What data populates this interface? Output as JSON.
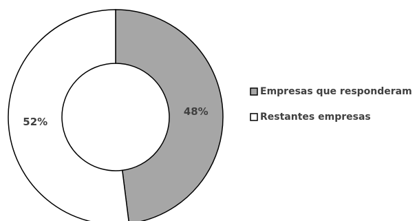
{
  "chart_data": {
    "type": "pie",
    "variant": "donut",
    "series": [
      {
        "label": "Empresas que responderam",
        "value": 48,
        "value_label": "48%",
        "color": "#a6a6a6"
      },
      {
        "label": "Restantes empresas",
        "value": 52,
        "value_label": "52%",
        "color": "#ffffff"
      }
    ],
    "legend_placement": "right",
    "outline_color": "#000000",
    "text_color": "#404040"
  }
}
